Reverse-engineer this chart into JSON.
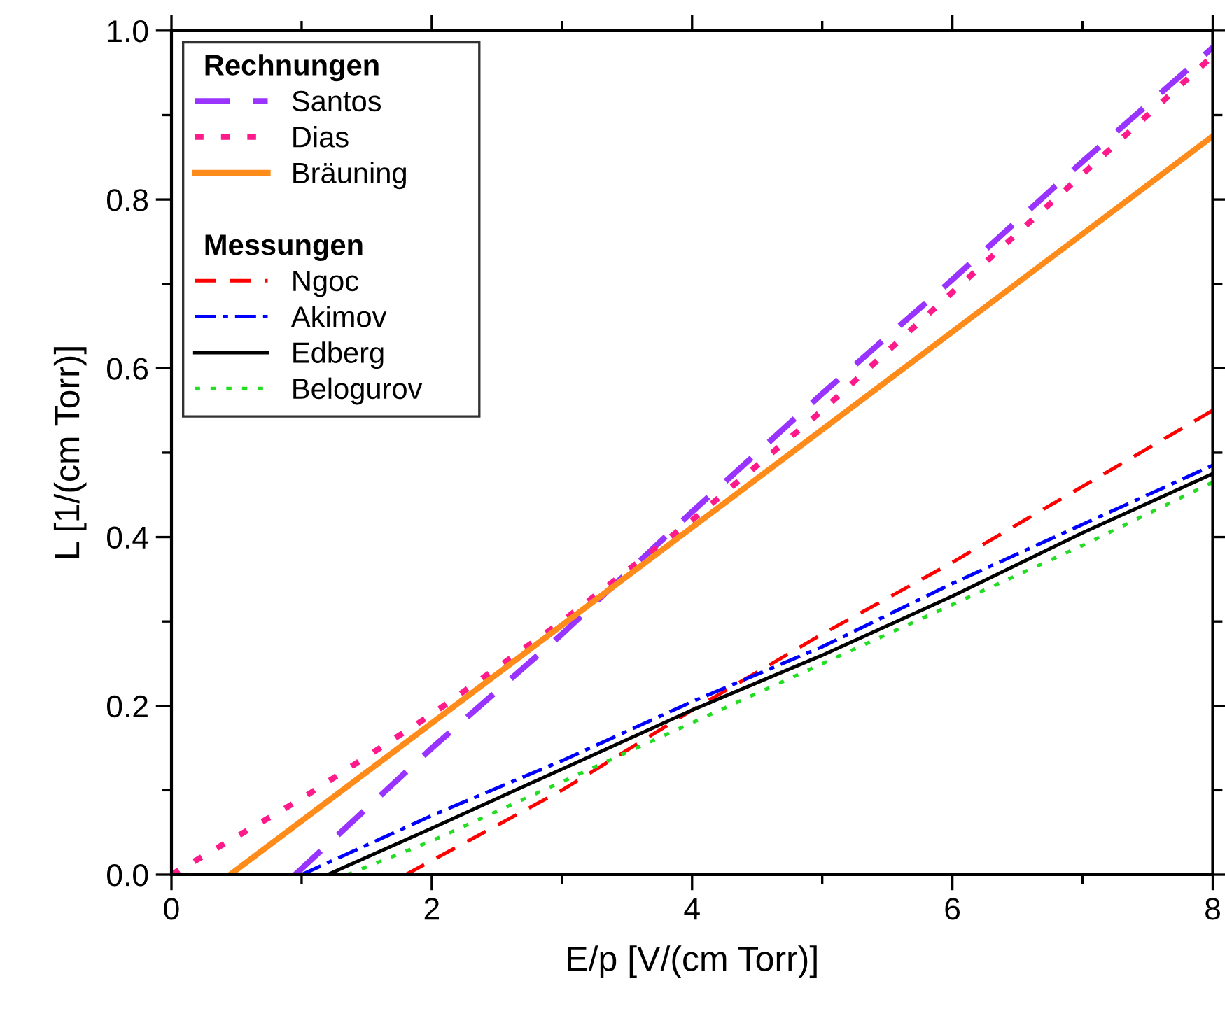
{
  "chart_data": {
    "type": "line",
    "xlabel": "E/p [V/(cm Torr)]",
    "ylabel": "L [1/(cm Torr)]",
    "xlim": [
      0,
      8
    ],
    "ylim": [
      0,
      1.0
    ],
    "xticks": [
      0,
      2,
      4,
      6,
      8
    ],
    "yticks": [
      {
        "value": 0,
        "label": "0.0"
      },
      0.2,
      0.4,
      0.6,
      0.8,
      {
        "value": 1.0,
        "label": "1.0"
      }
    ],
    "grid": false,
    "legend": "top left",
    "annotations": [
      "Rechnungen",
      "Messungen"
    ],
    "series": [
      {
        "name": "Santos",
        "color": "#9933ff",
        "line_style": "dashed",
        "x": [
          0.95,
          2,
          3,
          4,
          5,
          6,
          7,
          8
        ],
        "values": [
          0,
          0.15,
          0.285,
          0.43,
          0.57,
          0.705,
          0.845,
          0.98
        ]
      },
      {
        "name": "Dias",
        "color": "#ff1a8c",
        "line_style": "dotted",
        "x": [
          0,
          1,
          2,
          3,
          4,
          5,
          6,
          7,
          8
        ],
        "values": [
          0,
          0.09,
          0.19,
          0.3,
          0.42,
          0.55,
          0.69,
          0.83,
          0.97
        ]
      },
      {
        "name": "Bräuning",
        "color": "#ff8c1a",
        "line_style": "solid",
        "x": [
          0.45,
          8
        ],
        "values": [
          0,
          0.875
        ]
      },
      {
        "name": "Ngoc",
        "color": "#ff0000",
        "line_style": "dashed",
        "x": [
          1.8,
          3,
          4,
          5,
          6,
          7,
          8
        ],
        "values": [
          0,
          0.1,
          0.195,
          0.285,
          0.37,
          0.46,
          0.55
        ]
      },
      {
        "name": "Akimov",
        "color": "#0000ff",
        "line_style": "dashdot",
        "x": [
          1.0,
          2,
          3,
          4,
          5,
          6,
          7,
          8
        ],
        "values": [
          0,
          0.07,
          0.135,
          0.205,
          0.27,
          0.345,
          0.415,
          0.485
        ]
      },
      {
        "name": "Edberg",
        "color": "#000000",
        "line_style": "solid",
        "x": [
          1.2,
          2,
          3,
          4,
          5,
          6,
          7,
          8
        ],
        "values": [
          0,
          0.055,
          0.125,
          0.195,
          0.26,
          0.33,
          0.405,
          0.475
        ]
      },
      {
        "name": "Belogurov",
        "color": "#22dd22",
        "line_style": "dotted",
        "x": [
          1.35,
          2,
          3,
          4,
          5,
          6,
          7,
          8
        ],
        "values": [
          0,
          0.04,
          0.11,
          0.18,
          0.25,
          0.32,
          0.39,
          0.465
        ]
      }
    ]
  }
}
